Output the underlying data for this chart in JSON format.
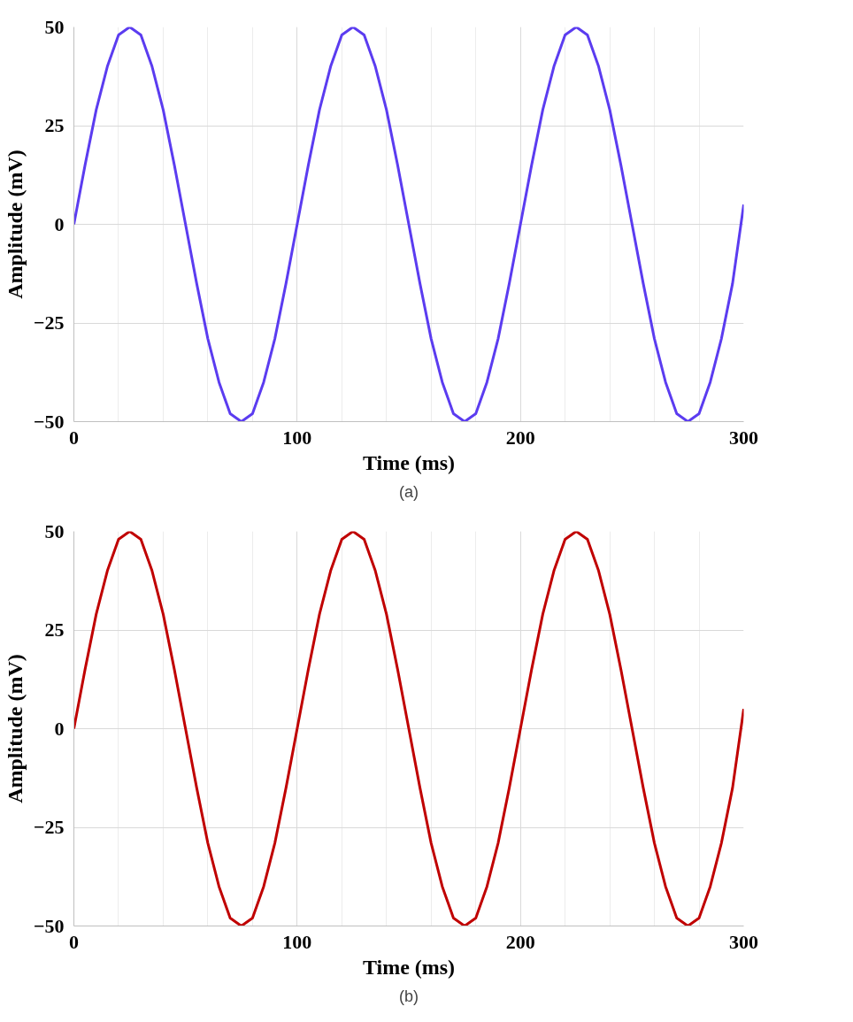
{
  "chart_data": [
    {
      "type": "line",
      "xlabel": "Time (ms)",
      "ylabel": "Amplitude (mV)",
      "annotations": [
        "(a)"
      ],
      "xlim": [
        0,
        300
      ],
      "xticks": [
        0,
        100,
        200,
        300
      ],
      "ylim": [
        -50,
        50
      ],
      "yticks": [
        -50,
        -25,
        0,
        25,
        50
      ],
      "grid": true,
      "x": [
        0,
        5,
        10,
        15,
        20,
        25,
        30,
        35,
        40,
        45,
        50,
        55,
        60,
        65,
        70,
        75,
        80,
        85,
        90,
        95,
        100,
        105,
        110,
        115,
        120,
        125,
        130,
        135,
        140,
        145,
        150,
        155,
        160,
        165,
        170,
        175,
        180,
        185,
        190,
        195,
        200,
        205,
        210,
        215,
        220,
        225,
        230,
        235,
        240,
        245,
        250,
        255,
        260,
        265,
        270,
        275,
        280,
        285,
        290,
        295,
        300
      ],
      "series": [
        {
          "color": "#5b3cf0",
          "values": [
            0,
            15,
            29,
            40,
            48,
            50,
            48,
            40,
            29,
            15,
            0,
            -15,
            -29,
            -40,
            -48,
            -50,
            -48,
            -40,
            -29,
            -15,
            0,
            15,
            29,
            40,
            48,
            50,
            48,
            40,
            29,
            15,
            0,
            -15,
            -29,
            -40,
            -48,
            -50,
            -48,
            -40,
            -29,
            -15,
            0,
            15,
            29,
            40,
            48,
            50,
            48,
            40,
            29,
            15,
            0,
            -15,
            -29,
            -40,
            -48,
            -50,
            -48,
            -40,
            -29,
            -15,
            5
          ]
        }
      ]
    },
    {
      "type": "line",
      "xlabel": "Time (ms)",
      "ylabel": "Amplitude (mV)",
      "annotations": [
        "(b)"
      ],
      "xlim": [
        0,
        300
      ],
      "xticks": [
        0,
        100,
        200,
        300
      ],
      "ylim": [
        -50,
        50
      ],
      "yticks": [
        -50,
        -25,
        0,
        25,
        50
      ],
      "grid": true,
      "x": [
        0,
        5,
        10,
        15,
        20,
        25,
        30,
        35,
        40,
        45,
        50,
        55,
        60,
        65,
        70,
        75,
        80,
        85,
        90,
        95,
        100,
        105,
        110,
        115,
        120,
        125,
        130,
        135,
        140,
        145,
        150,
        155,
        160,
        165,
        170,
        175,
        180,
        185,
        190,
        195,
        200,
        205,
        210,
        215,
        220,
        225,
        230,
        235,
        240,
        245,
        250,
        255,
        260,
        265,
        270,
        275,
        280,
        285,
        290,
        295,
        300
      ],
      "series": [
        {
          "color": "#c00000",
          "values": [
            0,
            15,
            29,
            40,
            48,
            50,
            48,
            40,
            29,
            15,
            0,
            -15,
            -29,
            -40,
            -48,
            -50,
            -48,
            -40,
            -29,
            -15,
            0,
            15,
            29,
            40,
            48,
            50,
            48,
            40,
            29,
            15,
            0,
            -15,
            -29,
            -40,
            -48,
            -50,
            -48,
            -40,
            -29,
            -15,
            0,
            15,
            29,
            40,
            48,
            50,
            48,
            40,
            29,
            15,
            0,
            -15,
            -29,
            -40,
            -48,
            -50,
            -48,
            -40,
            -29,
            -15,
            5
          ]
        }
      ]
    }
  ]
}
